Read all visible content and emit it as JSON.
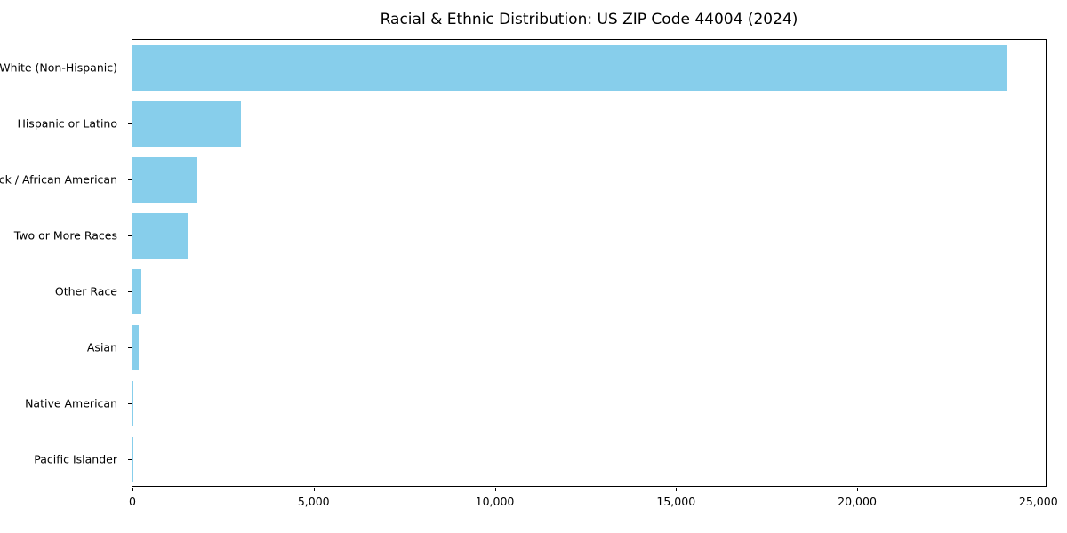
{
  "figure": {
    "title": "Racial & Ethnic Distribution: US ZIP Code 44004 (2024)"
  },
  "chart_data": {
    "type": "bar",
    "orientation": "horizontal",
    "title": "Racial & Ethnic Distribution: US ZIP Code 44004 (2024)",
    "categories": [
      "White (Non-Hispanic)",
      "Hispanic or Latino",
      "Black / African American",
      "Two or More Races",
      "Other Race",
      "Asian",
      "Native American",
      "Pacific Islander"
    ],
    "values": [
      24150,
      3000,
      1800,
      1520,
      250,
      170,
      30,
      10
    ],
    "xlabel": "",
    "ylabel": "",
    "xlim": [
      0,
      25250
    ],
    "xticks": [
      0,
      5000,
      10000,
      15000,
      20000,
      25000
    ],
    "xtick_labels": [
      "0",
      "5,000",
      "10,000",
      "15,000",
      "20,000",
      "25,000"
    ],
    "bar_color": "#87CEEB",
    "grid": false,
    "legend": "none",
    "bar_height_fraction": 0.8
  }
}
